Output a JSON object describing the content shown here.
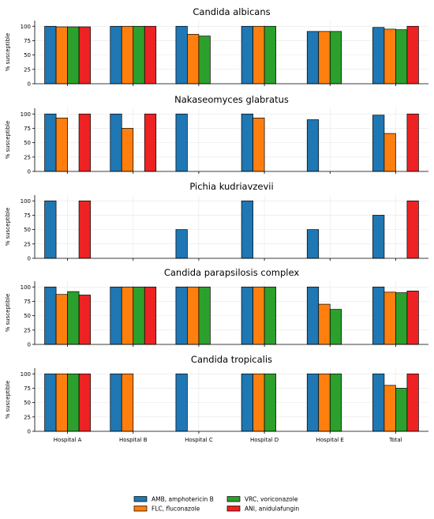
{
  "chart_data": {
    "type": "bar",
    "ylabel": "% susceptible",
    "yticks": [
      0,
      25,
      50,
      75,
      100
    ],
    "ylim": [
      0,
      110
    ],
    "grid": true,
    "legend_position": "bottom-center",
    "categories": [
      "Hospital A",
      "Hospital B",
      "Hospital C",
      "Hospital D",
      "Hospital E",
      "Total"
    ],
    "series": [
      {
        "name": "AMB, amphotericin B",
        "color": "#1f77b4"
      },
      {
        "name": "FLC, fluconazole",
        "color": "#ff7f0e"
      },
      {
        "name": "VRC, voriconazole",
        "color": "#2ca02c"
      },
      {
        "name": "ANI, anidulafungin",
        "color": "#ee2222"
      }
    ],
    "panels": [
      {
        "title": "Candida albicans",
        "values": [
          [
            100,
            100,
            100,
            100,
            91,
            98
          ],
          [
            99,
            100,
            86,
            100,
            91,
            95
          ],
          [
            99,
            100,
            83,
            100,
            91,
            94
          ],
          [
            99,
            100,
            null,
            null,
            null,
            100
          ]
        ]
      },
      {
        "title": "Nakaseomyces glabratus",
        "values": [
          [
            100,
            100,
            100,
            100,
            90,
            98
          ],
          [
            93,
            75,
            null,
            93,
            null,
            66
          ],
          [
            null,
            null,
            null,
            null,
            null,
            null
          ],
          [
            100,
            100,
            null,
            null,
            null,
            100
          ]
        ]
      },
      {
        "title": "Pichia kudriavzevii",
        "values": [
          [
            100,
            null,
            50,
            100,
            50,
            75
          ],
          [
            null,
            null,
            null,
            null,
            null,
            null
          ],
          [
            null,
            null,
            null,
            null,
            null,
            null
          ],
          [
            100,
            null,
            null,
            null,
            null,
            100
          ]
        ]
      },
      {
        "title": "Candida parapsilosis complex",
        "values": [
          [
            100,
            100,
            100,
            100,
            100,
            100
          ],
          [
            87,
            100,
            100,
            100,
            70,
            91
          ],
          [
            92,
            100,
            100,
            100,
            61,
            90
          ],
          [
            86,
            100,
            null,
            null,
            null,
            93
          ]
        ]
      },
      {
        "title": "Candida tropicalis",
        "values": [
          [
            100,
            100,
            100,
            100,
            100,
            100
          ],
          [
            100,
            100,
            null,
            100,
            100,
            80
          ],
          [
            100,
            null,
            null,
            100,
            100,
            75
          ],
          [
            100,
            null,
            null,
            null,
            null,
            100
          ]
        ]
      }
    ]
  }
}
